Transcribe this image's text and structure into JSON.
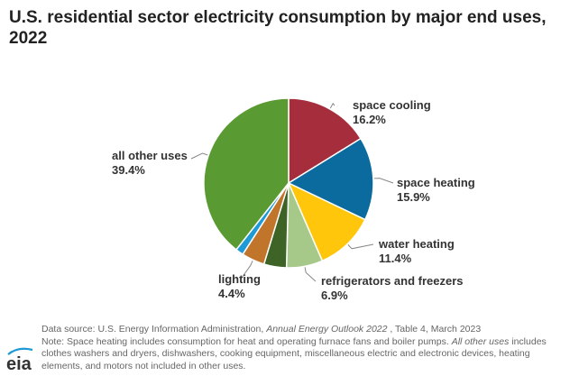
{
  "title": "U.S. residential sector electricity consumption by major end uses, 2022",
  "colors": {
    "space_cooling": "#a52d3c",
    "space_heating": "#0b6b9e",
    "water_heating": "#ffc60b",
    "refrigerators": "#a6c98a",
    "unlabeled_dark_green": "#3d6426",
    "lighting": "#c0752b",
    "unlabeled_blue": "#1e9ad6",
    "all_other": "#5a9a32",
    "leader": "#888888"
  },
  "chart_data": {
    "type": "pie",
    "title": "U.S. residential sector electricity consumption by major end uses, 2022",
    "start_angle_deg": 0,
    "direction": "clockwise",
    "slices": [
      {
        "label": "space cooling",
        "value": 16.2,
        "value_label": "16.2%",
        "color": "#a52d3c"
      },
      {
        "label": "space heating",
        "value": 15.9,
        "value_label": "15.9%",
        "color": "#0b6b9e"
      },
      {
        "label": "water heating",
        "value": 11.4,
        "value_label": "11.4%",
        "color": "#ffc60b"
      },
      {
        "label": "refrigerators and freezers",
        "value": 6.9,
        "value_label": "6.9%",
        "color": "#a6c98a"
      },
      {
        "label": "",
        "value": 4.3,
        "value_label": "",
        "color": "#3d6426"
      },
      {
        "label": "lighting",
        "value": 4.4,
        "value_label": "4.4%",
        "color": "#c0752b"
      },
      {
        "label": "",
        "value": 1.5,
        "value_label": "",
        "color": "#1e9ad6"
      },
      {
        "label": "all other uses",
        "value": 39.4,
        "value_label": "39.4%",
        "color": "#5a9a32"
      }
    ]
  },
  "footer": {
    "source_prefix": "Data source: U.S. Energy Information Administration, ",
    "source_title": "Annual Energy Outlook 2022",
    "source_suffix": " , Table 4, March 2023",
    "note_prefix": "Note: Space heating includes consumption for heat and operating furnace fans and boiler pumps. ",
    "note_italic": "All other uses",
    "note_suffix": " includes clothes washers and dryers, dishwashers, cooking equipment, miscellaneous electric and electronic devices, heating elements, and motors not included in other uses."
  },
  "logo": {
    "text": "eia",
    "icon": "eia-logo-icon"
  }
}
